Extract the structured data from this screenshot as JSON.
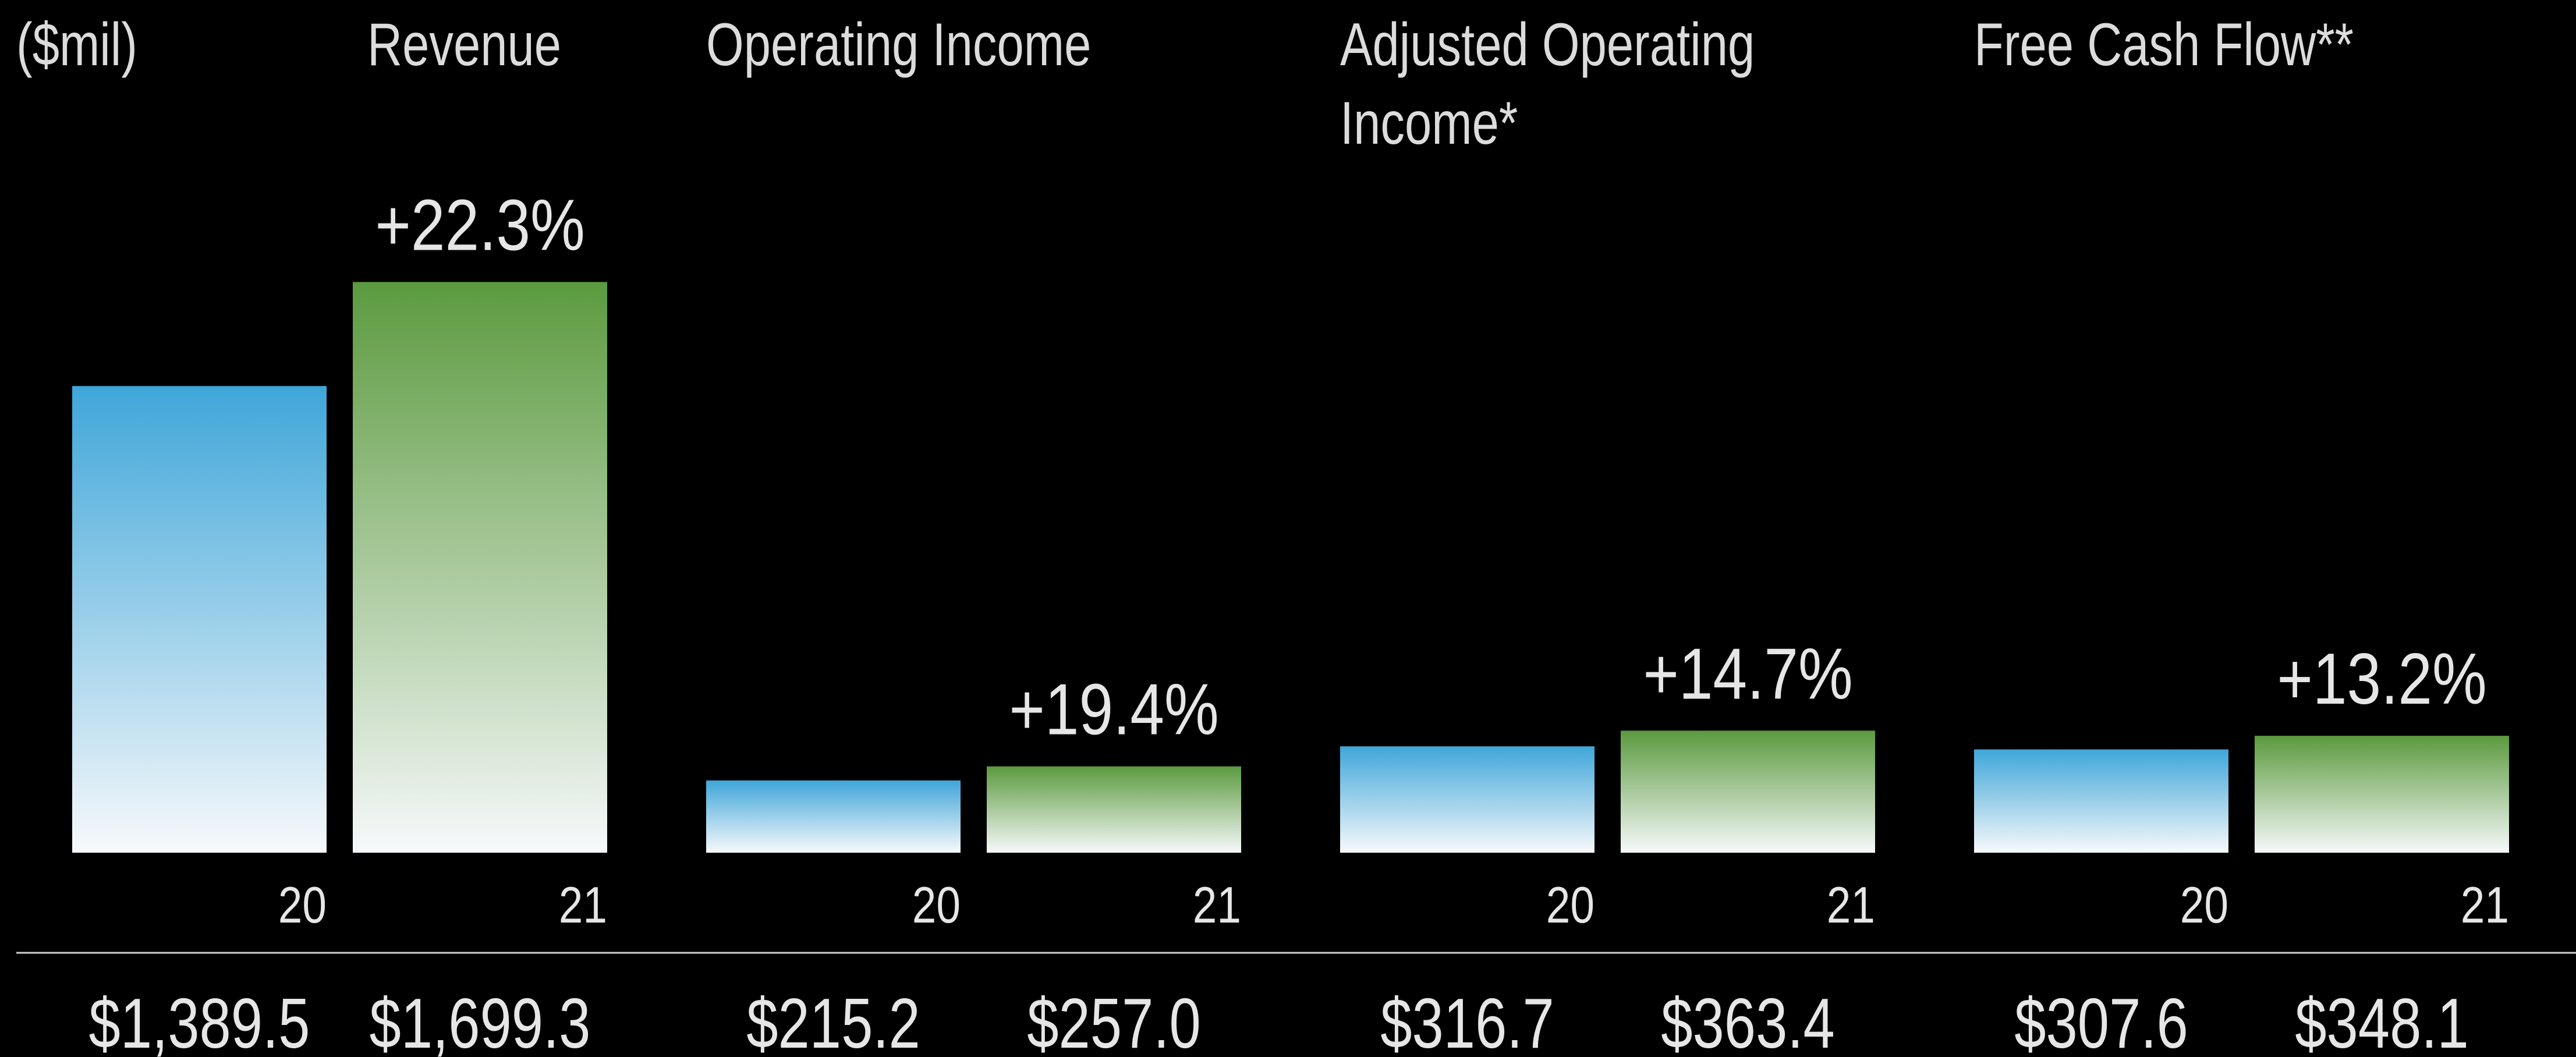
{
  "unit_label": "($mil)",
  "chart_data": [
    {
      "type": "bar",
      "title": "Revenue",
      "categories": [
        "20",
        "21"
      ],
      "values": [
        1389.5,
        1699.3
      ],
      "value_labels": [
        "$1,389.5",
        "$1,699.3"
      ],
      "annotation": "+22.3%",
      "colors": [
        "#3fa6d9",
        "#5b9a3e"
      ],
      "ylim": [
        0,
        2000
      ]
    },
    {
      "type": "bar",
      "title": "Operating Income",
      "categories": [
        "20",
        "21"
      ],
      "values": [
        215.2,
        257.0
      ],
      "value_labels": [
        "$215.2",
        "$257.0"
      ],
      "annotation": "+19.4%",
      "colors": [
        "#3fa6d9",
        "#5b9a3e"
      ],
      "ylim": [
        0,
        2000
      ]
    },
    {
      "type": "bar",
      "title": "Adjusted Operating Income*",
      "categories": [
        "20",
        "21"
      ],
      "values": [
        316.7,
        363.4
      ],
      "value_labels": [
        "$316.7",
        "$363.4"
      ],
      "annotation": "+14.7%",
      "colors": [
        "#3fa6d9",
        "#5b9a3e"
      ],
      "ylim": [
        0,
        2000
      ]
    },
    {
      "type": "bar",
      "title": "Free Cash Flow**",
      "categories": [
        "20",
        "21"
      ],
      "values": [
        307.6,
        348.1
      ],
      "value_labels": [
        "$307.6",
        "$348.1"
      ],
      "annotation": "+13.2%",
      "colors": [
        "#3fa6d9",
        "#5b9a3e"
      ],
      "ylim": [
        0,
        2000
      ]
    }
  ]
}
